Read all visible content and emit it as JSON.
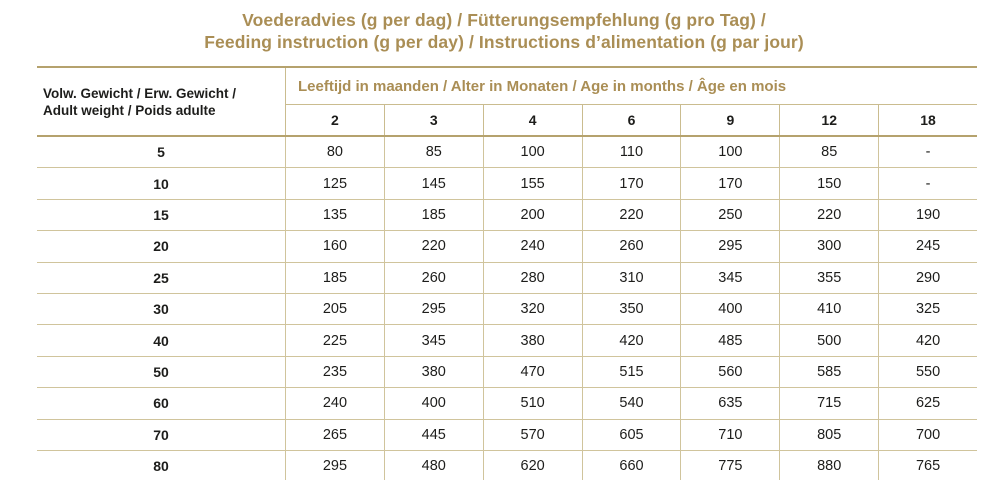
{
  "title": {
    "line1": "Voederadvies (g per dag) / Fütterungsempfehlung (g pro Tag) /",
    "line2": "Feeding instruction (g per day) / Instructions d’alimentation (g par jour)"
  },
  "colors": {
    "gold_text": "#aa8e55",
    "border_heavy": "#b5a26d",
    "border_light": "#d0c49c",
    "text": "#1d1d1b"
  },
  "table": {
    "weight_header_line1": "Volw. Gewicht / Erw. Gewicht /",
    "weight_header_line2": "Adult weight / Poids adulte",
    "age_header": "Leeftijd in maanden / Alter in Monaten / Age in months / Âge en mois",
    "age_columns": [
      "2",
      "3",
      "4",
      "6",
      "9",
      "12",
      "18"
    ],
    "rows": [
      {
        "weight": "5",
        "values": [
          "80",
          "85",
          "100",
          "110",
          "100",
          "85",
          "-"
        ]
      },
      {
        "weight": "10",
        "values": [
          "125",
          "145",
          "155",
          "170",
          "170",
          "150",
          "-"
        ]
      },
      {
        "weight": "15",
        "values": [
          "135",
          "185",
          "200",
          "220",
          "250",
          "220",
          "190"
        ]
      },
      {
        "weight": "20",
        "values": [
          "160",
          "220",
          "240",
          "260",
          "295",
          "300",
          "245"
        ]
      },
      {
        "weight": "25",
        "values": [
          "185",
          "260",
          "280",
          "310",
          "345",
          "355",
          "290"
        ]
      },
      {
        "weight": "30",
        "values": [
          "205",
          "295",
          "320",
          "350",
          "400",
          "410",
          "325"
        ]
      },
      {
        "weight": "40",
        "values": [
          "225",
          "345",
          "380",
          "420",
          "485",
          "500",
          "420"
        ]
      },
      {
        "weight": "50",
        "values": [
          "235",
          "380",
          "470",
          "515",
          "560",
          "585",
          "550"
        ]
      },
      {
        "weight": "60",
        "values": [
          "240",
          "400",
          "510",
          "540",
          "635",
          "715",
          "625"
        ]
      },
      {
        "weight": "70",
        "values": [
          "265",
          "445",
          "570",
          "605",
          "710",
          "805",
          "700"
        ]
      },
      {
        "weight": "80",
        "values": [
          "295",
          "480",
          "620",
          "660",
          "775",
          "880",
          "765"
        ]
      }
    ]
  }
}
